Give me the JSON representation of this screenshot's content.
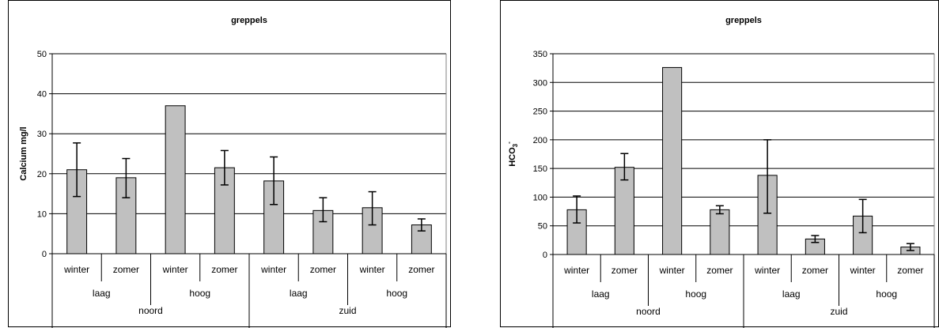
{
  "chart_data": [
    {
      "type": "bar",
      "title": "greppels",
      "ylabel": "Calcium mg/l",
      "ylim": [
        0,
        50
      ],
      "yticks": [
        0,
        10,
        20,
        30,
        40,
        50
      ],
      "categories": [
        "winter",
        "zomer",
        "winter",
        "zomer",
        "winter",
        "zomer",
        "winter",
        "zomer"
      ],
      "group_level1": [
        "laag",
        "hoog",
        "laag",
        "hoog"
      ],
      "group_level2": [
        "noord",
        "zuid"
      ],
      "values": [
        21,
        19,
        37,
        21.5,
        18.2,
        10.8,
        11.5,
        7.2
      ],
      "error_low": [
        14.3,
        14,
        null,
        17.2,
        12.3,
        8,
        7.2,
        5.7
      ],
      "error_high": [
        27.7,
        23.8,
        null,
        25.8,
        24.2,
        14,
        15.5,
        8.7
      ],
      "grid": true,
      "bar_color": "#c0c0c0"
    },
    {
      "type": "bar",
      "title": "greppels",
      "ylabel": "HCO3-",
      "ylim": [
        0,
        350
      ],
      "yticks": [
        0,
        50,
        100,
        150,
        200,
        250,
        300,
        350
      ],
      "categories": [
        "winter",
        "zomer",
        "winter",
        "zomer",
        "winter",
        "zomer",
        "winter",
        "zomer"
      ],
      "group_level1": [
        "laag",
        "hoog",
        "laag",
        "hoog"
      ],
      "group_level2": [
        "noord",
        "zuid"
      ],
      "values": [
        78,
        152,
        326,
        78,
        138,
        27,
        67,
        13
      ],
      "error_low": [
        55,
        130,
        null,
        71,
        72,
        21,
        38,
        7
      ],
      "error_high": [
        102,
        176,
        null,
        85,
        200,
        33,
        96,
        19
      ],
      "grid": true,
      "bar_color": "#c0c0c0"
    }
  ]
}
